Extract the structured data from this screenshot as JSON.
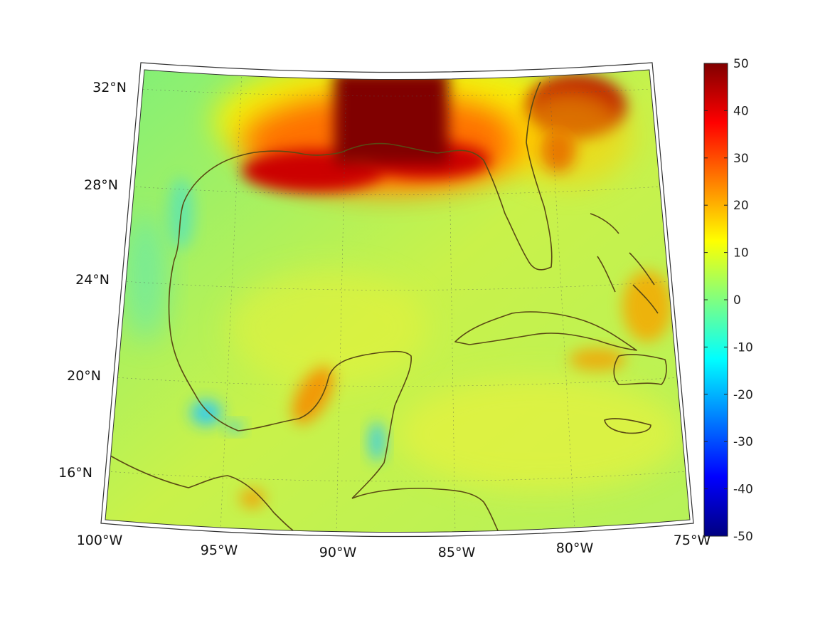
{
  "map": {
    "projection": "lambert-conic",
    "lon_range": [
      -100,
      -75
    ],
    "lat_range": [
      14,
      33
    ],
    "grid": true,
    "coastline_color": "#5a4a14",
    "lat_labels": [
      "32°N",
      "28°N",
      "24°N",
      "20°N",
      "16°N"
    ],
    "lat_values": [
      32,
      28,
      24,
      20,
      16
    ],
    "lon_labels": [
      "100°W",
      "95°W",
      "90°W",
      "85°W",
      "80°W",
      "75°W"
    ],
    "lon_values": [
      -100,
      -95,
      -90,
      -85,
      -80,
      -75
    ]
  },
  "colorbar": {
    "colormap": "jet",
    "min": -50,
    "max": 50,
    "tick_values": [
      50,
      40,
      30,
      20,
      10,
      0,
      -10,
      -20,
      -30,
      -40,
      -50
    ],
    "tick_labels": [
      "50",
      "40",
      "30",
      "20",
      "10",
      "0",
      "-10",
      "-20",
      "-30",
      "-40",
      "-50"
    ]
  },
  "field": {
    "background_value": 4,
    "anomalies": [
      {
        "region": "northern-gulf-coast-louisiana-florida-panhandle",
        "value": 50
      },
      {
        "region": "georgia-south-carolina-atlantic",
        "value": 45
      },
      {
        "region": "northern-bahamas",
        "value": 20
      },
      {
        "region": "yucatan-campeche-bay",
        "value": 22
      },
      {
        "region": "southern-cuba-caribbean",
        "value": 18
      },
      {
        "region": "veracruz-coast",
        "value": -12
      },
      {
        "region": "belize-coast",
        "value": -12
      }
    ]
  }
}
